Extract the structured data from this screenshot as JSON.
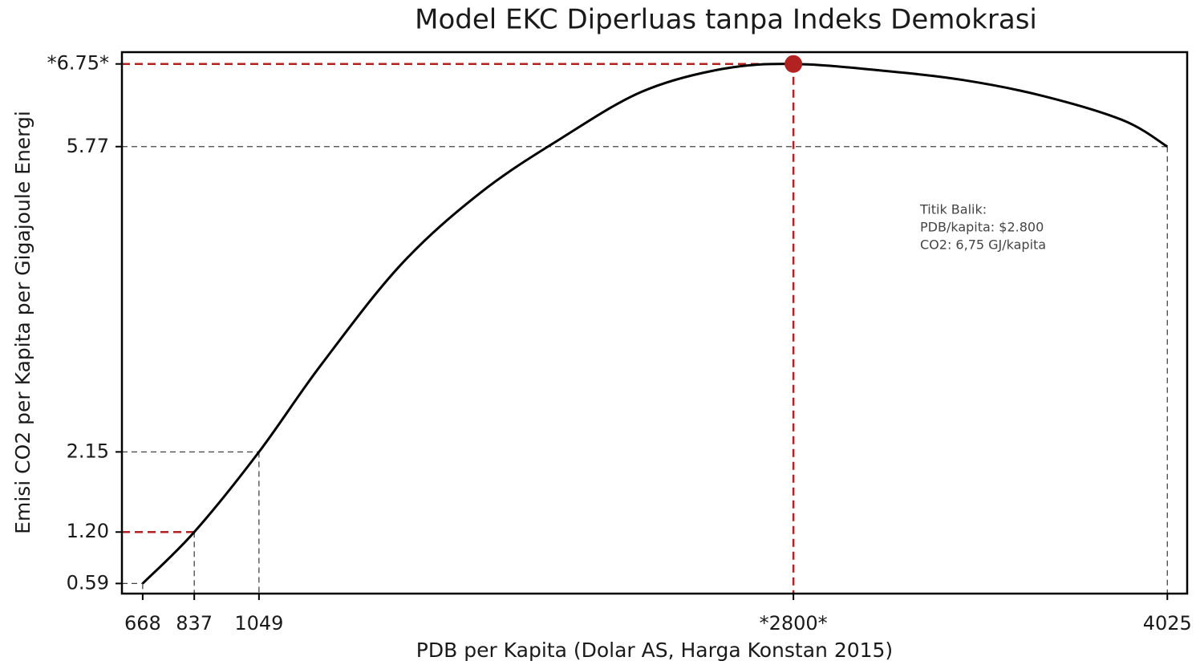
{
  "chart_data": {
    "type": "line",
    "title": "Model EKC Diperluas tanpa Indeks Demokrasi",
    "x_label": "PDB per Kapita (Dolar AS, Harga Konstan 2015)",
    "y_label": "Emisi CO2 per Kapita per Gigajoule Energi",
    "x": [
      668,
      837,
      1049,
      1252,
      1514,
      1777,
      2040,
      2303,
      2566,
      2800,
      3092,
      3355,
      3618,
      3881,
      4025
    ],
    "series": [
      {
        "name": "EKC",
        "color": "#000000",
        "values": [
          0.59,
          1.2,
          2.15,
          3.18,
          4.37,
          5.23,
          5.87,
          6.42,
          6.69,
          6.75,
          6.67,
          6.56,
          6.37,
          6.08,
          5.77
        ]
      }
    ],
    "xlim": [
      600,
      4090
    ],
    "ylim": [
      0.47,
      6.89
    ],
    "xticks": [
      668,
      837,
      1049,
      {
        "value": 2800,
        "label": "*2800*"
      },
      4025
    ],
    "yticks": [
      0.59,
      {
        "value": 1.2,
        "label": "1.20"
      },
      2.15,
      5.77,
      {
        "value": 6.75,
        "label": "*6.75*"
      }
    ],
    "highlight_color": "#b22222",
    "guide_color": "#444444",
    "annotation": [
      "Titik Balik:",
      "PDB/kapita: $2.800",
      "CO2: 6,75 GJ/kapita"
    ]
  }
}
